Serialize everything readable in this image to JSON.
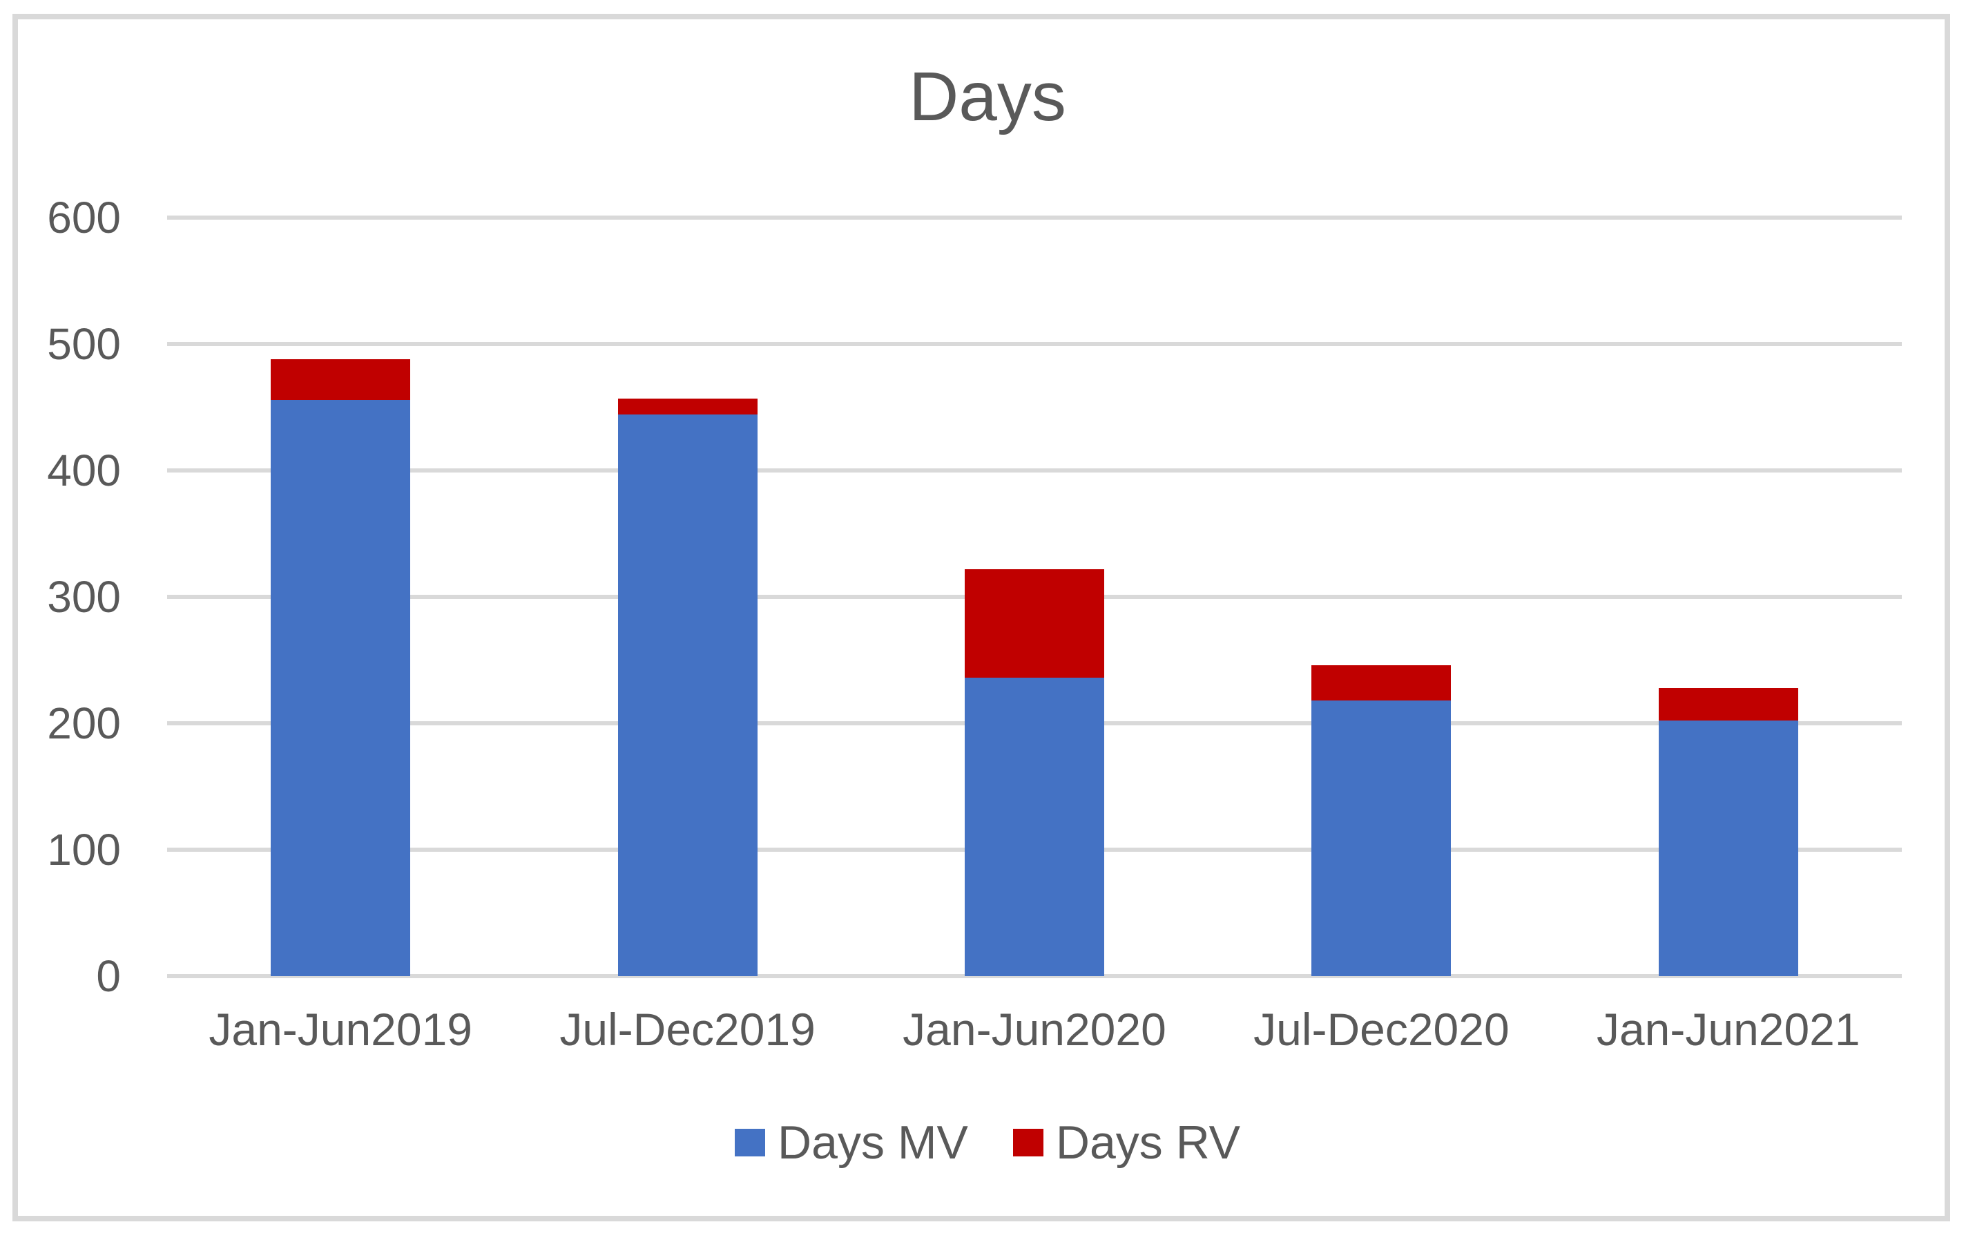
{
  "title": "Days",
  "colors": {
    "days_mv": "#4472C4",
    "days_rv": "#C00000",
    "grid": "#D9D9D9",
    "border": "#D9D9D9",
    "text": "#595959"
  },
  "legend": {
    "items": [
      {
        "label": "Days MV",
        "color": "#4472C4"
      },
      {
        "label": "Days RV",
        "color": "#C00000"
      }
    ],
    "position": "bottom"
  },
  "chart_data": {
    "type": "bar",
    "stacked": true,
    "title": "Days",
    "categories": [
      "Jan-Jun2019",
      "Jul-Dec2019",
      "Jan-Jun2020",
      "Jul-Dec2020",
      "Jan-Jun2021"
    ],
    "series": [
      {
        "name": "Days MV",
        "color": "#4472C4",
        "values": [
          456,
          444,
          236,
          218,
          202
        ]
      },
      {
        "name": "Days RV",
        "color": "#C00000",
        "values": [
          32,
          13,
          86,
          28,
          26
        ]
      }
    ],
    "totals": [
      488,
      457,
      322,
      246,
      228
    ],
    "xlabel": "",
    "ylabel": "",
    "ylim": [
      0,
      600
    ],
    "yticks": [
      0,
      100,
      200,
      300,
      400,
      500,
      600
    ],
    "grid": true,
    "legend_position": "bottom"
  }
}
